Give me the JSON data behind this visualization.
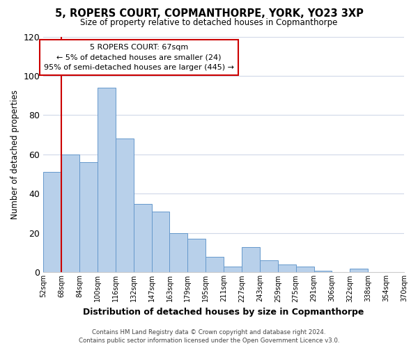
{
  "title": "5, ROPERS COURT, COPMANTHORPE, YORK, YO23 3XP",
  "subtitle": "Size of property relative to detached houses in Copmanthorpe",
  "xlabel": "Distribution of detached houses by size in Copmanthorpe",
  "ylabel": "Number of detached properties",
  "bar_values": [
    51,
    60,
    56,
    94,
    68,
    35,
    31,
    20,
    17,
    8,
    3,
    13,
    6,
    4,
    3,
    1,
    0,
    2,
    0,
    0
  ],
  "bar_labels": [
    "52sqm",
    "68sqm",
    "84sqm",
    "100sqm",
    "116sqm",
    "132sqm",
    "147sqm",
    "163sqm",
    "179sqm",
    "195sqm",
    "211sqm",
    "227sqm",
    "243sqm",
    "259sqm",
    "275sqm",
    "291sqm",
    "306sqm",
    "322sqm",
    "338sqm",
    "354sqm",
    "370sqm"
  ],
  "bar_color": "#b8d0ea",
  "bar_edgecolor": "#6699cc",
  "vline_color": "#cc0000",
  "ylim": [
    0,
    120
  ],
  "yticks": [
    0,
    20,
    40,
    60,
    80,
    100,
    120
  ],
  "annotation_title": "5 ROPERS COURT: 67sqm",
  "annotation_line1": "← 5% of detached houses are smaller (24)",
  "annotation_line2": "95% of semi-detached houses are larger (445) →",
  "annotation_box_color": "#ffffff",
  "annotation_box_edgecolor": "#cc0000",
  "footer1": "Contains HM Land Registry data © Crown copyright and database right 2024.",
  "footer2": "Contains public sector information licensed under the Open Government Licence v3.0.",
  "background_color": "#ffffff",
  "grid_color": "#d0d8e8"
}
